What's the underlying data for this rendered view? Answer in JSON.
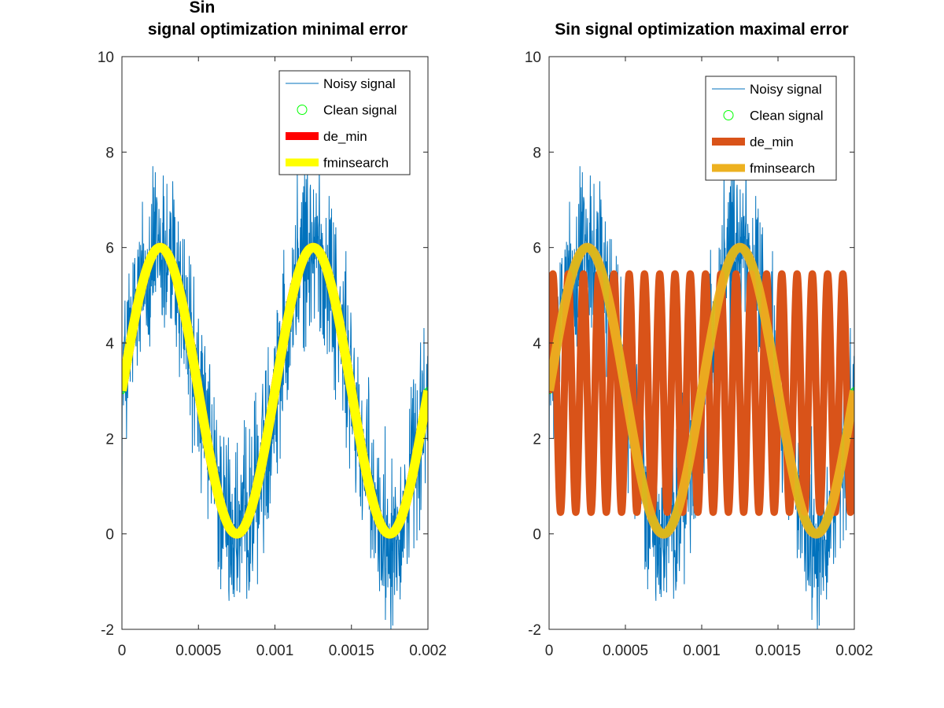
{
  "chart_data": [
    {
      "type": "line",
      "title_lines": [
        "Sin",
        "signal optimization minimal error"
      ],
      "xlim": [
        0,
        0.002
      ],
      "ylim": [
        -2,
        10
      ],
      "x_ticks": [
        0,
        0.0005,
        0.001,
        0.0015,
        0.002
      ],
      "x_tick_labels": [
        "0",
        "0.0005",
        "0.001",
        "0.0015",
        "0.002"
      ],
      "y_ticks": [
        -2,
        0,
        2,
        4,
        6,
        8,
        10
      ],
      "y_tick_labels": [
        "-2",
        "0",
        "2",
        "4",
        "6",
        "8",
        "10"
      ],
      "grid": false,
      "legend_position": "top-right",
      "series": [
        {
          "name": "Noisy signal",
          "kind": "noisy",
          "color": "#0072BD",
          "offset": 3,
          "amplitude": 3,
          "frequency": 1000,
          "noise_range": [
            -2.3,
            2.3
          ],
          "n_points": 1000
        },
        {
          "name": "Clean signal",
          "kind": "markers",
          "color": "#00FF00",
          "offset": 3,
          "amplitude": 3,
          "frequency": 1000,
          "n_points": 1000
        },
        {
          "name": "de_min",
          "kind": "thick",
          "color": "#FF0000",
          "offset": 3,
          "amplitude": 3,
          "frequency": 1000,
          "n_points": 400
        },
        {
          "name": "fminsearch",
          "kind": "thick",
          "color": "#FFFF00",
          "offset": 3,
          "amplitude": 3,
          "frequency": 1000,
          "n_points": 400
        }
      ]
    },
    {
      "type": "line",
      "title_lines": [
        "Sin signal optimization maximal error"
      ],
      "xlim": [
        0,
        0.002
      ],
      "ylim": [
        -2,
        10
      ],
      "x_ticks": [
        0,
        0.0005,
        0.001,
        0.0015,
        0.002
      ],
      "x_tick_labels": [
        "0",
        "0.0005",
        "0.001",
        "0.0015",
        "0.002"
      ],
      "y_ticks": [
        -2,
        0,
        2,
        4,
        6,
        8,
        10
      ],
      "y_tick_labels": [
        "-2",
        "0",
        "2",
        "4",
        "6",
        "8",
        "10"
      ],
      "grid": false,
      "legend_position": "top-right",
      "series": [
        {
          "name": "Noisy signal",
          "kind": "noisy",
          "color": "#0072BD",
          "offset": 3,
          "amplitude": 3,
          "frequency": 1000,
          "noise_range": [
            -2.3,
            2.3
          ],
          "n_points": 1000
        },
        {
          "name": "Clean signal",
          "kind": "markers",
          "color": "#00FF00",
          "offset": 3,
          "amplitude": 3,
          "frequency": 1000,
          "n_points": 1000
        },
        {
          "name": "de_min",
          "kind": "thick",
          "color": "#D95319",
          "offset": 2.95,
          "amplitude": 2.5,
          "frequency": 10000,
          "n_points": 4000
        },
        {
          "name": "fminsearch",
          "kind": "thick",
          "color": "#EDB120",
          "offset": 3,
          "amplitude": 3,
          "frequency": 1000,
          "n_points": 400
        }
      ]
    }
  ]
}
